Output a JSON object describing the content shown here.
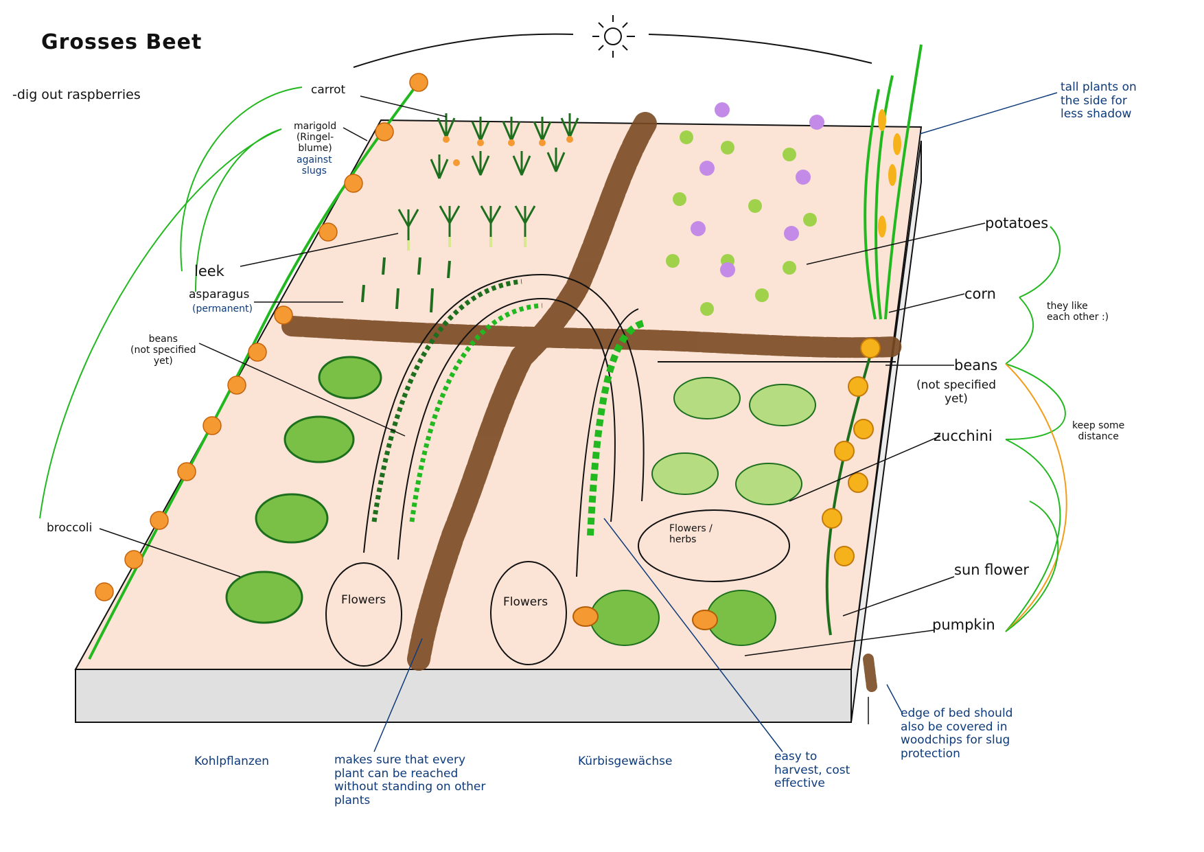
{
  "title": "Grosses Beet",
  "note": "-dig out raspberries",
  "labels": {
    "carrot": "carrot",
    "marigold": "marigold\n(Ringel-\nblume)",
    "marigold_note": "against\nslugs",
    "leek": "leek",
    "asparagus": "asparagus",
    "asparagus_note": "(permanent)",
    "beans_left": "beans\n(not specified\nyet)",
    "broccoli": "broccoli",
    "flowers_1": "Flowers",
    "flowers_2": "Flowers",
    "flowers_herbs": "Flowers /\nherbs",
    "potatoes": "potatoes",
    "corn": "corn",
    "beans_right": "beans",
    "beans_right_note": "(not specified\nyet)",
    "zucchini": "zucchini",
    "sun_flower": "sun flower",
    "pumpkin": "pumpkin",
    "like_each_other": "they like\neach other :)",
    "keep_distance": "keep some\ndistance",
    "tall_plants": "tall plants on\nthe side for\nless shadow",
    "kohlpflanzen": "Kohlpflanzen",
    "kuerbis": "Kürbisgewächse",
    "path_note": "makes sure that every\nplant can be reached\nwithout standing on other\nplants",
    "harvest_note": "easy to\nharvest, cost\neffective",
    "edge_note": "edge of bed should\nalso be covered in\nwoodchips for slug\nprotection"
  },
  "colors": {
    "bed": "#fbe3d6",
    "bed_side": "#e0e0e0",
    "woodchips": "#7a4a23",
    "green": "#22b81f",
    "dark_green": "#1d6e1d",
    "light_green": "#9fd24a",
    "marigold": "#f59a33",
    "sunflower": "#f6b21b",
    "ink_blue": "#0d3a7a",
    "orange_line": "#f39c1a",
    "lavender": "#c38ae8"
  }
}
